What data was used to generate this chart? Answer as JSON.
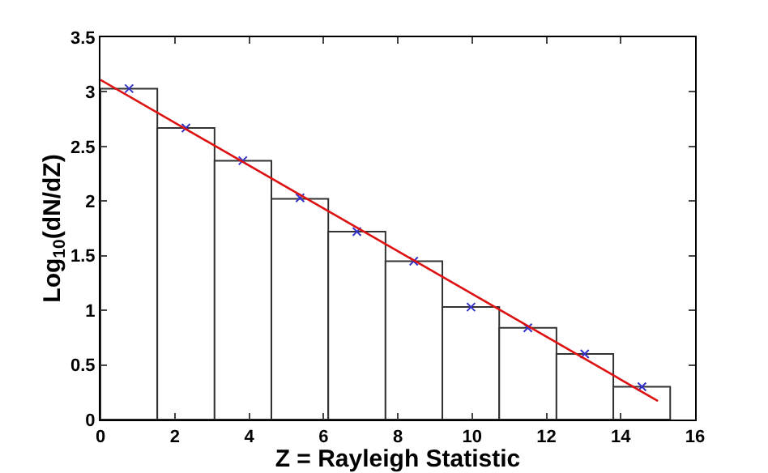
{
  "chart_data": {
    "type": "histogram",
    "xlabel": "Z = Rayleigh Statistic",
    "ylabel": "Log$_{10}$(dN/dZ)",
    "xlim": [
      0,
      16
    ],
    "xticks": [
      0,
      2,
      4,
      6,
      8,
      10,
      12,
      14,
      16
    ],
    "ylim": [
      0,
      3.5
    ],
    "yticks": [
      0,
      0.5,
      1,
      1.5,
      2,
      2.5,
      3,
      3.5
    ],
    "grid": false,
    "legend": false,
    "color": "#ffffff",
    "bins": [
      0,
      1.53,
      3.07,
      4.6,
      6.13,
      7.67,
      9.2,
      10.73,
      12.27,
      13.8,
      15.33
    ],
    "values": [
      3.03,
      2.67,
      2.37,
      2.02,
      1.72,
      1.45,
      1.03,
      0.84,
      0.6,
      0.3
    ],
    "series": [
      {
        "type": "scatter",
        "color": "#3333cc",
        "marker": "cross",
        "x": [
          0.77,
          2.3,
          3.83,
          5.37,
          6.9,
          8.43,
          9.97,
          11.5,
          13.03,
          14.57
        ],
        "values": [
          3.03,
          2.67,
          2.37,
          2.03,
          1.72,
          1.45,
          1.03,
          0.84,
          0.6,
          0.3
        ]
      },
      {
        "type": "line",
        "color": "#dd1111",
        "line_style": "solid",
        "x": [
          0,
          15
        ],
        "values": [
          3.11,
          0.17
        ]
      }
    ]
  }
}
